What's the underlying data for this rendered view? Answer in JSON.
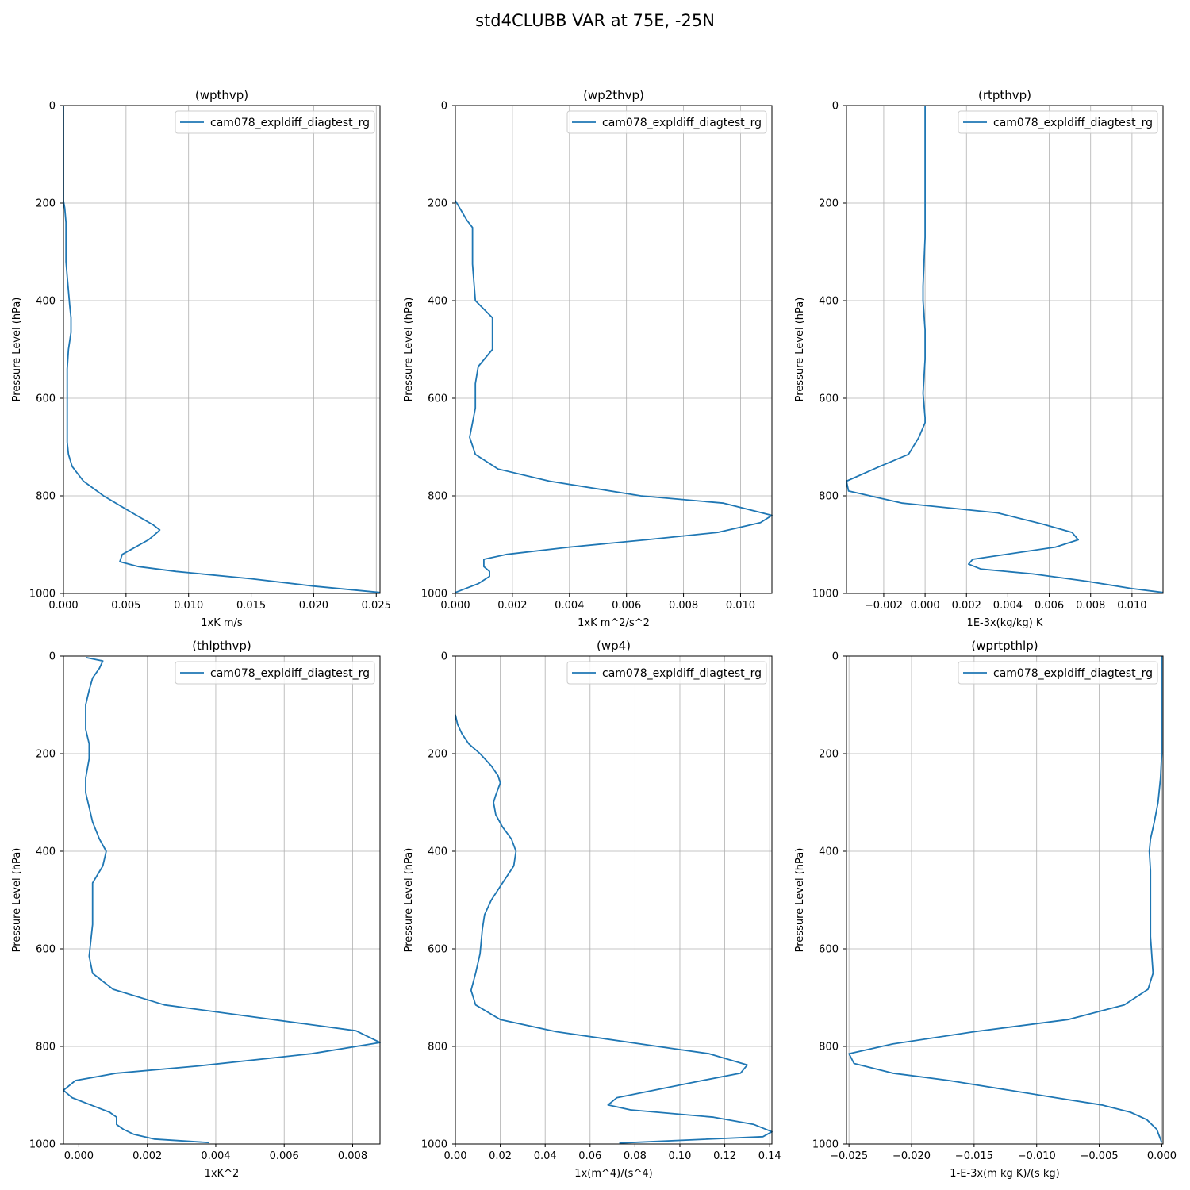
{
  "figure": {
    "title": "std4CLUBB VAR at 75E, -25N"
  },
  "chart_data": [
    {
      "type": "line",
      "title": "(wpthvp)",
      "xlabel": "1xK m/s",
      "ylabel": "Pressure Level (hPa)",
      "xlim": [
        0.0,
        0.0253
      ],
      "ylim": [
        1000,
        0
      ],
      "xticks": [
        0.0,
        0.005,
        0.01,
        0.015,
        0.02,
        0.025
      ],
      "xtick_labels": [
        "0.000",
        "0.005",
        "0.010",
        "0.015",
        "0.020",
        "0.025"
      ],
      "yticks": [
        0,
        200,
        400,
        600,
        800,
        1000
      ],
      "ytick_labels": [
        "0",
        "200",
        "400",
        "600",
        "800",
        "1000"
      ],
      "grid": true,
      "legend": {
        "position": "upper right",
        "entries": [
          "cam078_expldiff_diagtest_rg"
        ]
      },
      "series": [
        {
          "name": "cam078_expldiff_diagtest_rg",
          "color": "#1f77b4",
          "x": [
            0.0,
            0.0,
            0.0001,
            0.0002,
            0.0002,
            0.0002,
            0.0003,
            0.0004,
            0.0005,
            0.0006,
            0.0006,
            0.0004,
            0.0003,
            0.0003,
            0.0003,
            0.0003,
            0.0004,
            0.0007,
            0.0016,
            0.0032,
            0.0055,
            0.0072,
            0.0077,
            0.0075,
            0.0068,
            0.0047,
            0.0045,
            0.006,
            0.009,
            0.015,
            0.02,
            0.0253
          ],
          "y": [
            0,
            195,
            210,
            240,
            270,
            320,
            350,
            380,
            410,
            435,
            465,
            500,
            540,
            580,
            620,
            690,
            715,
            740,
            770,
            800,
            835,
            860,
            870,
            875,
            890,
            920,
            935,
            945,
            955,
            970,
            985,
            998
          ]
        }
      ]
    },
    {
      "type": "line",
      "title": "(wp2thvp)",
      "xlabel": "1xK m^2/s^2",
      "ylabel": "Pressure Level (hPa)",
      "xlim": [
        0.0,
        0.0111
      ],
      "ylim": [
        1000,
        0
      ],
      "xticks": [
        0.0,
        0.002,
        0.004,
        0.006,
        0.008,
        0.01
      ],
      "xtick_labels": [
        "0.000",
        "0.002",
        "0.004",
        "0.006",
        "0.008",
        "0.010"
      ],
      "yticks": [
        0,
        200,
        400,
        600,
        800,
        1000
      ],
      "ytick_labels": [
        "0",
        "200",
        "400",
        "600",
        "800",
        "1000"
      ],
      "grid": true,
      "legend": {
        "position": "upper right",
        "entries": [
          "cam078_expldiff_diagtest_rg"
        ]
      },
      "series": [
        {
          "name": "cam078_expldiff_diagtest_rg",
          "color": "#1f77b4",
          "x": [
            0.0,
            0.0002,
            0.0004,
            0.0006,
            0.0006,
            0.0006,
            0.0007,
            0.0013,
            0.0013,
            0.0008,
            0.0007,
            0.0007,
            0.0007,
            0.0006,
            0.0005,
            0.0007,
            0.0015,
            0.0033,
            0.0065,
            0.0094,
            0.0111,
            0.0107,
            0.0092,
            0.0067,
            0.004,
            0.0018,
            0.001,
            0.001,
            0.0012,
            0.0012,
            0.0008,
            0.0
          ],
          "y": [
            195,
            215,
            235,
            250,
            300,
            325,
            400,
            435,
            500,
            535,
            570,
            610,
            620,
            650,
            680,
            715,
            745,
            770,
            800,
            815,
            840,
            855,
            875,
            890,
            905,
            920,
            930,
            945,
            955,
            965,
            980,
            998
          ]
        }
      ]
    },
    {
      "type": "line",
      "title": "(rtpthvp)",
      "xlabel": "1E-3x(kg/kg) K",
      "ylabel": "Pressure Level (hPa)",
      "xlim": [
        -0.0038,
        0.0115
      ],
      "ylim": [
        1000,
        0
      ],
      "xticks": [
        -0.002,
        0.0,
        0.002,
        0.004,
        0.006,
        0.008,
        0.01
      ],
      "xtick_labels": [
        "−0.002",
        "0.000",
        "0.002",
        "0.004",
        "0.006",
        "0.008",
        "0.010"
      ],
      "yticks": [
        0,
        200,
        400,
        600,
        800,
        1000
      ],
      "ytick_labels": [
        "0",
        "200",
        "400",
        "600",
        "800",
        "1000"
      ],
      "grid": true,
      "legend": {
        "position": "upper right",
        "entries": [
          "cam078_expldiff_diagtest_rg"
        ]
      },
      "series": [
        {
          "name": "cam078_expldiff_diagtest_rg",
          "color": "#1f77b4",
          "x": [
            0.0,
            0.0,
            -0.0001,
            -0.0001,
            0.0,
            0.0,
            -0.0001,
            0.0,
            0.0,
            -0.0003,
            -0.0008,
            -0.0022,
            -0.0038,
            -0.0037,
            -0.0011,
            0.0035,
            0.0057,
            0.0071,
            0.0074,
            0.0063,
            0.0023,
            0.0021,
            0.0027,
            0.0052,
            0.0078,
            0.01,
            0.0115
          ],
          "y": [
            0,
            270,
            370,
            400,
            460,
            520,
            590,
            640,
            650,
            680,
            715,
            740,
            770,
            790,
            815,
            835,
            858,
            875,
            890,
            905,
            930,
            940,
            950,
            960,
            975,
            990,
            998
          ]
        }
      ]
    },
    {
      "type": "line",
      "title": "(thlpthvp)",
      "xlabel": "1xK^2",
      "ylabel": "Pressure Level (hPa)",
      "xlim": [
        -0.00045,
        0.0088
      ],
      "ylim": [
        1000,
        0
      ],
      "xticks": [
        0.0,
        0.002,
        0.004,
        0.006,
        0.008
      ],
      "xtick_labels": [
        "0.000",
        "0.002",
        "0.004",
        "0.006",
        "0.008"
      ],
      "yticks": [
        0,
        200,
        400,
        600,
        800,
        1000
      ],
      "ytick_labels": [
        "0",
        "200",
        "400",
        "600",
        "800",
        "1000"
      ],
      "grid": true,
      "legend": {
        "position": "upper right",
        "entries": [
          "cam078_expldiff_diagtest_rg"
        ]
      },
      "series": [
        {
          "name": "cam078_expldiff_diagtest_rg",
          "color": "#1f77b4",
          "x": [
            0.0002,
            0.0007,
            0.0006,
            0.0004,
            0.0003,
            0.0002,
            0.0002,
            0.0002,
            0.0003,
            0.0003,
            0.0002,
            0.0002,
            0.0003,
            0.0004,
            0.0006,
            0.0008,
            0.0007,
            0.0004,
            0.0004,
            0.0004,
            0.0003,
            0.0004,
            0.001,
            0.0025,
            0.0081,
            0.0088,
            0.0068,
            0.0035,
            0.0011,
            -0.0001,
            -0.00045,
            -0.0002,
            0.0009,
            0.0011,
            0.0011,
            0.0013,
            0.0016,
            0.0022,
            0.0038
          ],
          "y": [
            3,
            10,
            25,
            45,
            70,
            100,
            130,
            150,
            180,
            210,
            250,
            280,
            310,
            340,
            375,
            400,
            430,
            465,
            500,
            550,
            615,
            650,
            683,
            715,
            768,
            792,
            815,
            840,
            855,
            870,
            890,
            905,
            935,
            945,
            960,
            970,
            980,
            990,
            997
          ]
        }
      ]
    },
    {
      "type": "line",
      "title": "(wp4)",
      "xlabel": "1x(m^4)/(s^4)",
      "ylabel": "Pressure Level (hPa)",
      "xlim": [
        0.0,
        0.141
      ],
      "ylim": [
        1000,
        0
      ],
      "xticks": [
        0.0,
        0.02,
        0.04,
        0.06,
        0.08,
        0.1,
        0.12,
        0.14
      ],
      "xtick_labels": [
        "0.00",
        "0.02",
        "0.04",
        "0.06",
        "0.08",
        "0.10",
        "0.12",
        "0.14"
      ],
      "yticks": [
        0,
        200,
        400,
        600,
        800,
        1000
      ],
      "ytick_labels": [
        "0",
        "200",
        "400",
        "600",
        "800",
        "1000"
      ],
      "grid": true,
      "legend": {
        "position": "upper right",
        "entries": [
          "cam078_expldiff_diagtest_rg"
        ]
      },
      "series": [
        {
          "name": "cam078_expldiff_diagtest_rg",
          "color": "#1f77b4",
          "x": [
            0.0,
            0.001,
            0.003,
            0.006,
            0.011,
            0.016,
            0.019,
            0.02,
            0.018,
            0.017,
            0.018,
            0.021,
            0.025,
            0.027,
            0.026,
            0.021,
            0.016,
            0.013,
            0.012,
            0.011,
            0.009,
            0.007,
            0.009,
            0.02,
            0.045,
            0.09,
            0.113,
            0.13,
            0.127,
            0.11,
            0.072,
            0.068,
            0.078,
            0.115,
            0.133,
            0.141,
            0.137,
            0.073
          ],
          "y": [
            120,
            140,
            160,
            180,
            200,
            225,
            245,
            260,
            285,
            300,
            325,
            350,
            375,
            400,
            430,
            465,
            500,
            530,
            560,
            610,
            650,
            685,
            715,
            745,
            770,
            800,
            815,
            838,
            855,
            870,
            905,
            920,
            930,
            945,
            960,
            975,
            985,
            998
          ]
        }
      ]
    },
    {
      "type": "line",
      "title": "(wprtpthlp)",
      "xlabel": "1-E-3x(m kg K)/(s kg)",
      "ylabel": "Pressure Level (hPa)",
      "xlim": [
        -0.0252,
        0.0001
      ],
      "ylim": [
        1000,
        0
      ],
      "xticks": [
        -0.025,
        -0.02,
        -0.015,
        -0.01,
        -0.005,
        0.0
      ],
      "xtick_labels": [
        "−0.025",
        "−0.020",
        "−0.015",
        "−0.010",
        "−0.005",
        "0.000"
      ],
      "yticks": [
        0,
        200,
        400,
        600,
        800,
        1000
      ],
      "ytick_labels": [
        "0",
        "200",
        "400",
        "600",
        "800",
        "1000"
      ],
      "grid": true,
      "legend": {
        "position": "upper right",
        "entries": [
          "cam078_expldiff_diagtest_rg"
        ]
      },
      "series": [
        {
          "name": "cam078_expldiff_diagtest_rg",
          "color": "#1f77b4",
          "x": [
            0.0,
            0.0,
            -0.0001,
            -0.0003,
            -0.0006,
            -0.0009,
            -0.001,
            -0.0009,
            -0.0009,
            -0.0009,
            -0.0007,
            -0.0011,
            -0.003,
            -0.0075,
            -0.015,
            -0.0215,
            -0.025,
            -0.0246,
            -0.0215,
            -0.017,
            -0.0085,
            -0.0048,
            -0.0025,
            -0.0012,
            -0.0004,
            0.0
          ],
          "y": [
            0,
            200,
            250,
            300,
            340,
            375,
            400,
            440,
            500,
            575,
            650,
            683,
            715,
            745,
            770,
            795,
            815,
            835,
            855,
            870,
            905,
            920,
            935,
            950,
            970,
            997
          ]
        }
      ]
    }
  ]
}
